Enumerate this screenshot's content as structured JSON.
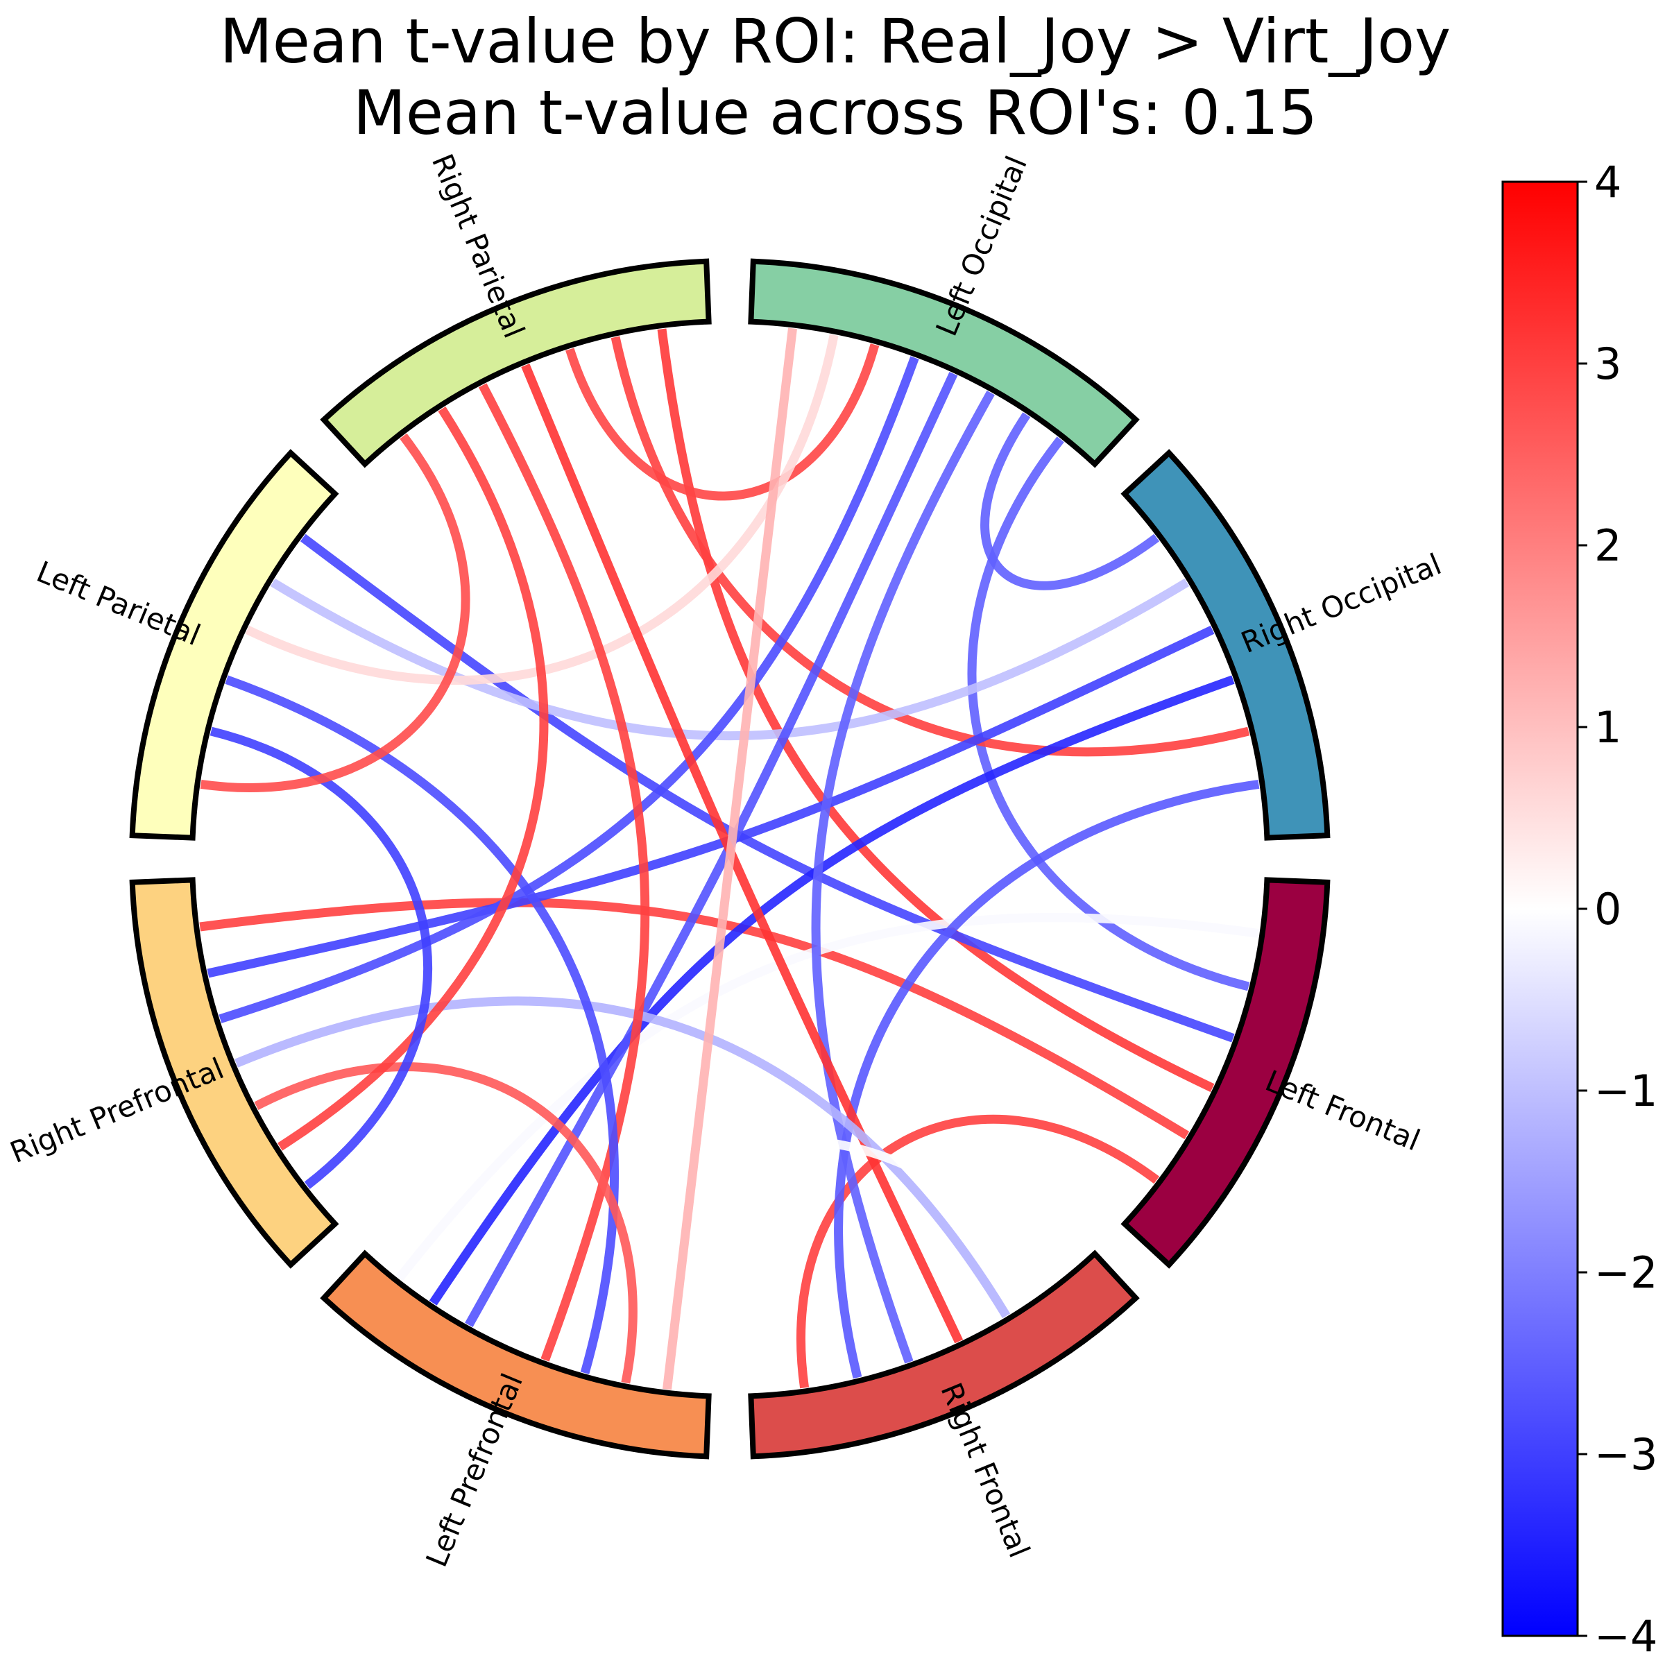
{
  "chart_data": {
    "type": "chord",
    "title": "Mean t-value by ROI: Real_Joy > Virt_Joy",
    "subtitle": "Mean t-value across ROI's: 0.15",
    "nodes": [
      {
        "name": "Right Occipital",
        "color": "#3f93b8"
      },
      {
        "name": "Left Occipital",
        "color": "#86cfa4"
      },
      {
        "name": "Right Parietal",
        "color": "#d6ee9a"
      },
      {
        "name": "Left Parietal",
        "color": "#feffbc"
      },
      {
        "name": "Right Prefrontal",
        "color": "#fdd280"
      },
      {
        "name": "Left Prefrontal",
        "color": "#f78f53"
      },
      {
        "name": "Right Frontal",
        "color": "#dc4d4b"
      },
      {
        "name": "Left Frontal",
        "color": "#9b0041"
      }
    ],
    "links": [
      {
        "source": "Left Frontal",
        "target": "Right Frontal",
        "value": 3.0
      },
      {
        "source": "Left Frontal",
        "target": "Right Prefrontal",
        "value": 3.0
      },
      {
        "source": "Left Frontal",
        "target": "Right Parietal",
        "value": 3.1
      },
      {
        "source": "Left Frontal",
        "target": "Left Parietal",
        "value": -2.9
      },
      {
        "source": "Left Frontal",
        "target": "Left Occipital",
        "value": -2.5
      },
      {
        "source": "Left Frontal",
        "target": "Left Prefrontal",
        "value": -0.1
      },
      {
        "source": "Right Occipital",
        "target": "Right Frontal",
        "value": -2.6
      },
      {
        "source": "Right Occipital",
        "target": "Right Parietal",
        "value": 3.0
      },
      {
        "source": "Right Occipital",
        "target": "Left Prefrontal",
        "value": -3.4
      },
      {
        "source": "Right Occipital",
        "target": "Right Prefrontal",
        "value": -3.0
      },
      {
        "source": "Right Occipital",
        "target": "Left Parietal",
        "value": -1.0
      },
      {
        "source": "Right Occipital",
        "target": "Left Occipital",
        "value": -2.5
      },
      {
        "source": "Left Occipital",
        "target": "Right Frontal",
        "value": -2.5
      },
      {
        "source": "Left Occipital",
        "target": "Left Prefrontal",
        "value": -2.7
      },
      {
        "source": "Left Occipital",
        "target": "Right Prefrontal",
        "value": -2.8
      },
      {
        "source": "Left Occipital",
        "target": "Right Parietal",
        "value": 2.9
      },
      {
        "source": "Left Occipital",
        "target": "Left Parietal",
        "value": 0.6
      },
      {
        "source": "Right Frontal",
        "target": "Right Parietal",
        "value": 3.2
      },
      {
        "source": "Right Frontal",
        "target": "Right Prefrontal",
        "value": -1.2
      },
      {
        "source": "Right Frontal",
        "target": "Left Prefrontal",
        "value": 0.0
      },
      {
        "source": "Left Prefrontal",
        "target": "Right Parietal",
        "value": 3.0
      },
      {
        "source": "Left Prefrontal",
        "target": "Left Parietal",
        "value": -2.8
      },
      {
        "source": "Left Prefrontal",
        "target": "Right Prefrontal",
        "value": 2.6
      },
      {
        "source": "Left Prefrontal",
        "target": "Left Occipital",
        "value": 1.2
      },
      {
        "source": "Right Prefrontal",
        "target": "Right Parietal",
        "value": 3.0
      },
      {
        "source": "Right Prefrontal",
        "target": "Left Parietal",
        "value": -3.0
      },
      {
        "source": "Left Parietal",
        "target": "Right Parietal",
        "value": 2.8
      }
    ],
    "colorbar": {
      "colormap": "bwr",
      "range": [
        -4,
        4
      ],
      "ticks": [
        "4",
        "3",
        "2",
        "1",
        "0",
        "−1",
        "−2",
        "−3",
        "−4"
      ]
    },
    "grid": false,
    "legend": "colorbar-right"
  }
}
